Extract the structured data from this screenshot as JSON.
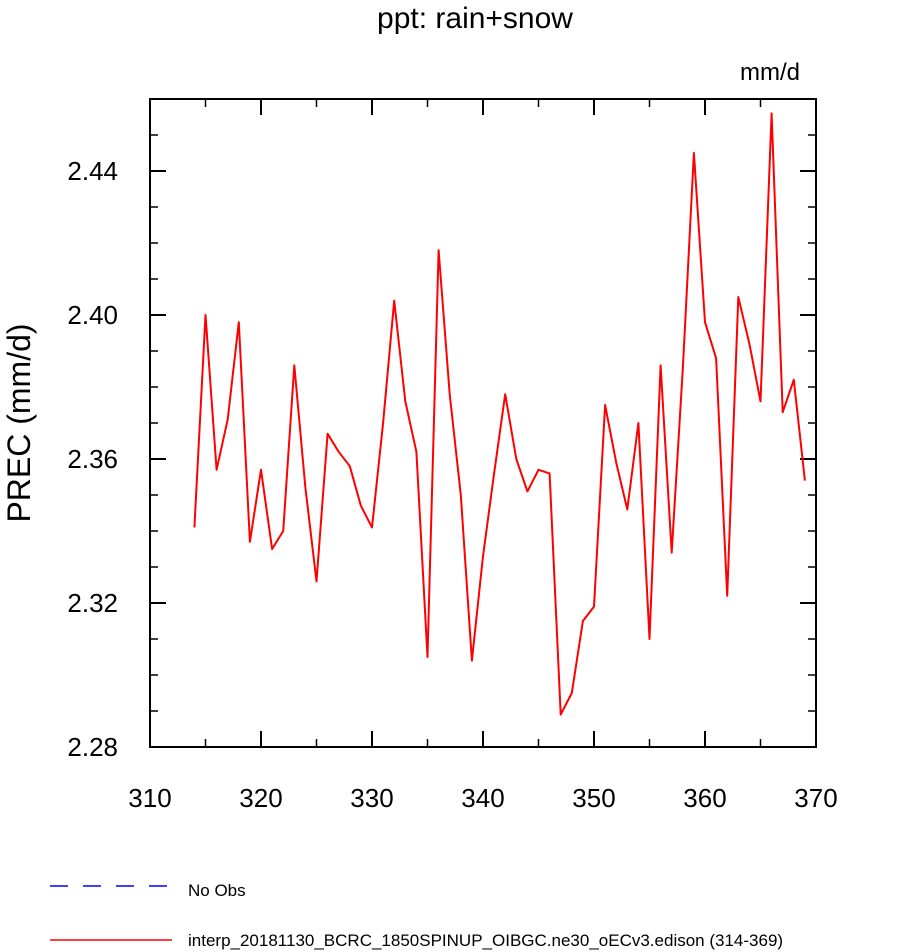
{
  "chart_data": {
    "type": "line",
    "title": "ppt: rain+snow",
    "units_label": "mm/d",
    "ylabel": "PREC  (mm/d)",
    "xlabel": "",
    "xlim": [
      310,
      370
    ],
    "ylim": [
      2.28,
      2.46
    ],
    "x_ticks": [
      310,
      320,
      330,
      340,
      350,
      360,
      370
    ],
    "x_tick_labels": [
      "310",
      "320",
      "330",
      "340",
      "350",
      "360",
      "370"
    ],
    "y_ticks": [
      2.28,
      2.32,
      2.36,
      2.4,
      2.44
    ],
    "y_tick_labels": [
      "2.28",
      "2.32",
      "2.36",
      "2.40",
      "2.44"
    ],
    "grid": false,
    "legend_position": "bottom",
    "series": [
      {
        "name": "interp_20181130_BCRC_1850SPINUP_OIBGC.ne30_oECv3.edison (314-369)",
        "color": "#ff0000",
        "dash": "solid",
        "x": [
          314,
          315,
          316,
          317,
          318,
          319,
          320,
          321,
          322,
          323,
          324,
          325,
          326,
          327,
          328,
          329,
          330,
          331,
          332,
          333,
          334,
          335,
          336,
          337,
          338,
          339,
          340,
          341,
          342,
          343,
          344,
          345,
          346,
          347,
          348,
          349,
          350,
          351,
          352,
          353,
          354,
          355,
          356,
          357,
          358,
          359,
          360,
          361,
          362,
          363,
          364,
          365,
          366,
          367,
          368,
          369
        ],
        "y": [
          2.341,
          2.4,
          2.357,
          2.371,
          2.398,
          2.337,
          2.357,
          2.335,
          2.34,
          2.386,
          2.352,
          2.326,
          2.367,
          2.362,
          2.358,
          2.347,
          2.341,
          2.37,
          2.404,
          2.376,
          2.362,
          2.305,
          2.418,
          2.378,
          2.35,
          2.304,
          2.333,
          2.356,
          2.378,
          2.36,
          2.351,
          2.357,
          2.356,
          2.289,
          2.295,
          2.315,
          2.319,
          2.375,
          2.359,
          2.346,
          2.37,
          2.31,
          2.386,
          2.334,
          2.385,
          2.445,
          2.398,
          2.388,
          2.322,
          2.405,
          2.392,
          2.376,
          2.456,
          2.373,
          2.382,
          2.354
        ]
      },
      {
        "name": "No Obs",
        "color": "#0000ff",
        "dash": "dashed",
        "x": [],
        "y": []
      }
    ]
  }
}
